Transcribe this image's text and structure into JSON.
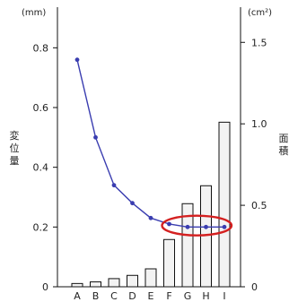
{
  "chart_data": {
    "type": "bar",
    "categories": [
      "A",
      "B",
      "C",
      "D",
      "E",
      "F",
      "G",
      "H",
      "I"
    ],
    "y_left": {
      "unit": "(mm)",
      "label": "変位量",
      "ticks": [
        "0",
        "0.2",
        "0.4",
        "0.6",
        "0.8"
      ],
      "ylim": [
        0,
        0.9
      ]
    },
    "y_right": {
      "unit": "(cm²)",
      "label": "面積",
      "ticks": [
        "0",
        "0.5",
        "1.0",
        "1.5"
      ],
      "ylim": [
        0,
        1.65
      ]
    },
    "series": [
      {
        "type": "line",
        "axis": "left",
        "color": "#3a3db0",
        "values": [
          0.76,
          0.5,
          0.34,
          0.28,
          0.23,
          0.21,
          0.2,
          0.2,
          0.2
        ]
      },
      {
        "type": "bar",
        "axis": "right",
        "color": "#f3f3f3",
        "values": [
          0.02,
          0.03,
          0.05,
          0.07,
          0.11,
          0.29,
          0.51,
          0.62,
          1.01
        ]
      }
    ],
    "highlight": {
      "categories": [
        "F",
        "I"
      ],
      "color": "#d42020"
    }
  }
}
